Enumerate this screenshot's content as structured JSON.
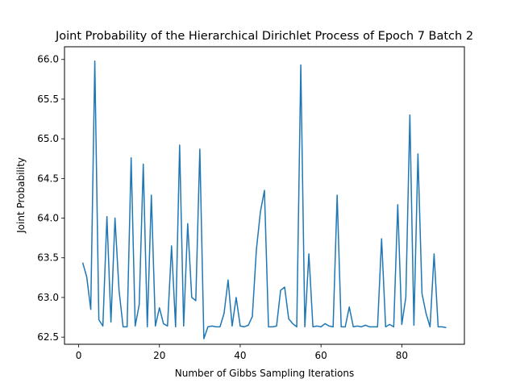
{
  "chart_data": {
    "type": "line",
    "title": "Joint Probability of the Hierarchical Dirichlet Process of Epoch 7 Batch 2",
    "xlabel": "Number of Gibbs Sampling Iterations",
    "ylabel": "Joint Probability",
    "xlim": [
      -3.5,
      95.5
    ],
    "ylim": [
      62.41,
      66.16
    ],
    "xticks": [
      0,
      20,
      40,
      60,
      80
    ],
    "yticks": [
      62.5,
      63.0,
      63.5,
      64.0,
      64.5,
      65.0,
      65.5,
      66.0
    ],
    "ytick_labels": [
      "62.5",
      "63.0",
      "63.5",
      "64.0",
      "64.5",
      "65.0",
      "65.5",
      "66.0"
    ],
    "grid": false,
    "series": [
      {
        "color": "#1f77b4",
        "x": [
          1,
          2,
          3,
          4,
          5,
          6,
          7,
          8,
          9,
          10,
          11,
          12,
          13,
          14,
          15,
          16,
          17,
          18,
          19,
          20,
          21,
          22,
          23,
          24,
          25,
          26,
          27,
          28,
          29,
          30,
          31,
          32,
          33,
          34,
          35,
          36,
          37,
          38,
          39,
          40,
          41,
          42,
          43,
          44,
          45,
          46,
          47,
          48,
          49,
          50,
          51,
          52,
          53,
          54,
          55,
          56,
          57,
          58,
          59,
          60,
          61,
          62,
          63,
          64,
          65,
          66,
          67,
          68,
          69,
          70,
          71,
          72,
          73,
          74,
          75,
          76,
          77,
          78,
          79,
          80,
          81,
          82,
          83,
          84,
          85,
          86,
          87,
          88,
          89,
          90,
          91
        ],
        "y": [
          63.44,
          63.26,
          62.85,
          65.98,
          62.72,
          62.64,
          64.02,
          62.69,
          64.0,
          63.09,
          62.63,
          62.63,
          64.76,
          62.64,
          62.91,
          64.68,
          62.63,
          64.29,
          62.64,
          62.87,
          62.67,
          62.64,
          63.65,
          62.63,
          64.92,
          62.64,
          63.93,
          63.0,
          62.96,
          64.87,
          62.48,
          62.63,
          62.64,
          62.63,
          62.63,
          62.8,
          63.22,
          62.64,
          63.0,
          62.64,
          62.63,
          62.65,
          62.76,
          63.6,
          64.08,
          64.35,
          62.63,
          62.63,
          62.64,
          63.09,
          63.13,
          62.73,
          62.67,
          62.63,
          65.93,
          62.63,
          63.55,
          62.63,
          62.64,
          62.63,
          62.67,
          62.64,
          62.63,
          64.29,
          62.63,
          62.63,
          62.88,
          62.63,
          62.64,
          62.63,
          62.65,
          62.63,
          62.63,
          62.63,
          63.74,
          62.63,
          62.66,
          62.63,
          64.17,
          62.66,
          63.0,
          65.3,
          62.65,
          64.81,
          63.05,
          62.8,
          62.63,
          63.55,
          62.63,
          62.63,
          62.62
        ]
      }
    ]
  }
}
